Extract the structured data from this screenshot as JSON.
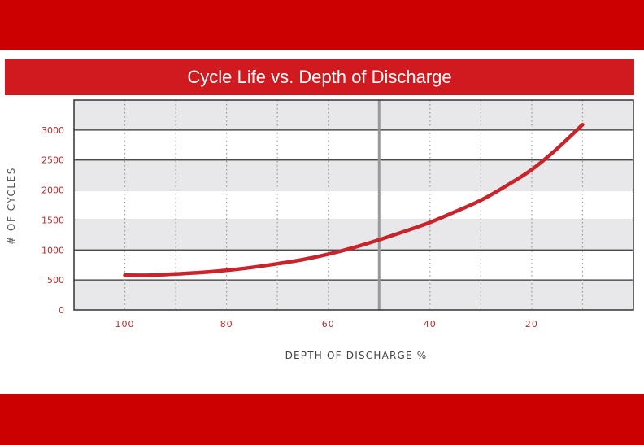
{
  "chart_data": {
    "type": "line",
    "title": "Cycle Life vs. Depth of Discharge",
    "xlabel": "DEPTH OF DISCHARGE %",
    "ylabel": "# OF CYCLES",
    "xlim": [
      110,
      0
    ],
    "ylim": [
      0,
      3500
    ],
    "x_ticks": [
      100,
      80,
      60,
      40,
      20
    ],
    "y_ticks": [
      0,
      500,
      1000,
      1500,
      2000,
      2500,
      3000
    ],
    "grid": true,
    "colors": {
      "line": "#c8242c",
      "tick_label": "#b03030",
      "band_fill": "#e8e8ea",
      "reference_line": "#999999"
    },
    "reference_line_x": 50,
    "series": [
      {
        "x": [
          100,
          95,
          90,
          85,
          80,
          75,
          70,
          65,
          60,
          55,
          50,
          45,
          40,
          35,
          30,
          25,
          20,
          15,
          10
        ],
        "values": [
          580,
          580,
          600,
          625,
          660,
          710,
          770,
          840,
          930,
          1040,
          1170,
          1310,
          1460,
          1640,
          1830,
          2070,
          2340,
          2690,
          3090
        ]
      }
    ]
  }
}
